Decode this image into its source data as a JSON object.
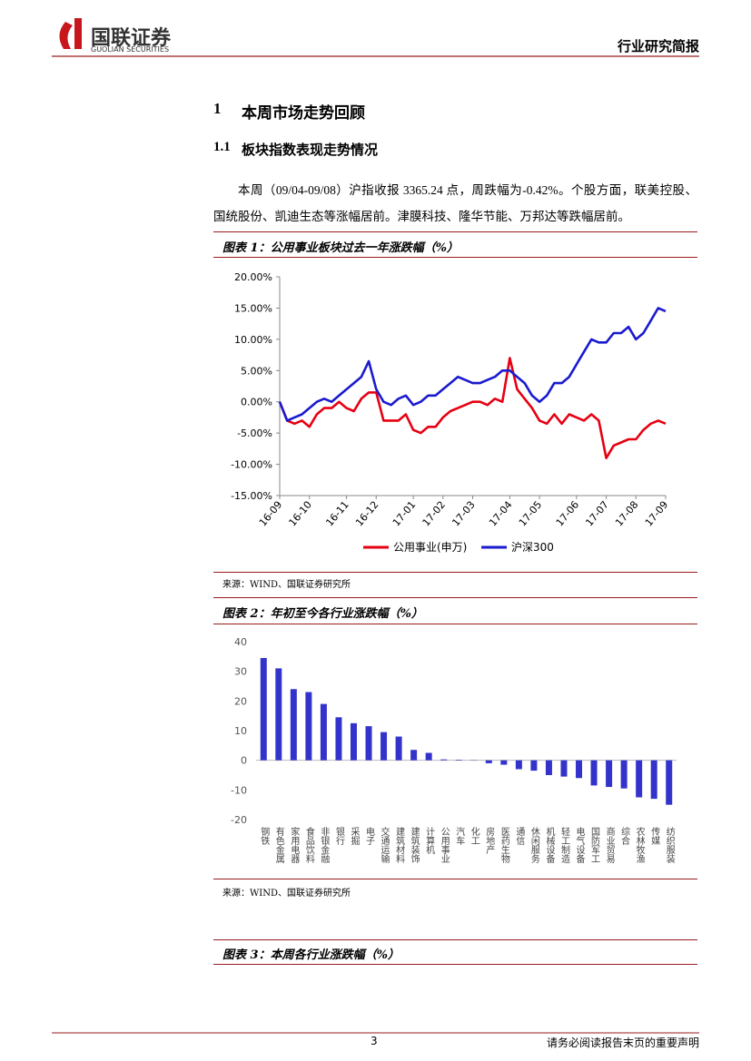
{
  "header": {
    "logo_cn": "国联证券",
    "logo_en": "GUOLIAN SECURITIES",
    "report_type": "行业研究简报"
  },
  "section": {
    "number": "1",
    "title": "本周市场走势回顾"
  },
  "subsection": {
    "number": "1.1",
    "title": "板块指数表现走势情况"
  },
  "paragraph": "本周（09/04-09/08）沪指收报 3365.24 点，周跌幅为-0.42%。个股方面，联美控股、国统股份、凯迪生态等涨幅居前。津膜科技、隆华节能、万邦达等跌幅居前。",
  "chart_data": [
    {
      "type": "line",
      "title": "图表 1：公用事业板块过去一年涨跌幅（%）",
      "source": "来源：WIND、国联证券研究所",
      "categories": [
        "16-09",
        null,
        null,
        null,
        "16-10",
        null,
        null,
        null,
        null,
        "16-11",
        null,
        null,
        null,
        "16-12",
        null,
        null,
        null,
        null,
        "17-01",
        null,
        null,
        null,
        "17-02",
        null,
        null,
        null,
        "17-03",
        null,
        null,
        null,
        null,
        "17-04",
        null,
        null,
        null,
        "17-05",
        null,
        null,
        null,
        null,
        "17-06",
        null,
        null,
        null,
        "17-07",
        null,
        null,
        null,
        "17-08",
        null,
        null,
        null,
        "17-09"
      ],
      "series": [
        {
          "name": "公用事业(申万)",
          "color": "#e60012",
          "values": [
            0,
            -3,
            -3.5,
            -3,
            -4,
            -2,
            -1,
            -1,
            0,
            -1,
            -1.5,
            0.5,
            1.5,
            1.5,
            -3,
            -3,
            -3,
            -2,
            -4.5,
            -5,
            -4,
            -4,
            -2.5,
            -1.5,
            -1,
            -0.5,
            0,
            0,
            -0.5,
            0.5,
            0,
            7,
            2,
            0.5,
            -1,
            -3,
            -3.5,
            -2,
            -3.5,
            -2,
            -2.5,
            -3,
            -2,
            -3,
            -9,
            -7,
            -6.5,
            -6,
            -6,
            -4.5,
            -3.5,
            -3,
            -3.5
          ]
        },
        {
          "name": "沪深300",
          "color": "#1a1ad0",
          "values": [
            0,
            -3,
            -2.5,
            -2,
            -1,
            0,
            0.5,
            0,
            1,
            2,
            3,
            4,
            6.5,
            2,
            0,
            -0.5,
            0.5,
            1,
            -0.5,
            0,
            1,
            1,
            2,
            3,
            4,
            3.5,
            3,
            3,
            3.5,
            4,
            5,
            5,
            4,
            3,
            1,
            0,
            1,
            3,
            3,
            4,
            6,
            8,
            10,
            9.5,
            9.5,
            11,
            11,
            12,
            10,
            11,
            13,
            15,
            14.5
          ]
        }
      ],
      "ylim": [
        -15,
        20
      ],
      "yticks": [
        {
          "value": -15,
          "label": "-15.00%"
        },
        {
          "value": -10,
          "label": "-10.00%"
        },
        {
          "value": -5,
          "label": "-5.00%"
        },
        {
          "value": 0,
          "label": "0.00%"
        },
        {
          "value": 5,
          "label": "5.00%"
        },
        {
          "value": 10,
          "label": "10.00%"
        },
        {
          "value": 15,
          "label": "15.00%"
        },
        {
          "value": 20,
          "label": "20.00%"
        }
      ],
      "grid": false,
      "legend": "bottom"
    },
    {
      "type": "bar",
      "title": "图表 2：年初至今各行业涨跌幅（%）",
      "source": "来源：WIND、国联证券研究所",
      "categories": [
        "钢铁",
        "有色金属",
        "家用电器",
        "食品饮料",
        "非银金融",
        "银行",
        "采掘",
        "电子",
        "交通运输",
        "建筑材料",
        "建筑装饰",
        "计算机",
        "公用事业",
        "汽车",
        "化工",
        "房地产",
        "医药生物",
        "通信",
        "休闲服务",
        "机械设备",
        "轻工制造",
        "电气设备",
        "国防军工",
        "商业贸易",
        "综合",
        "农林牧渔",
        "传媒",
        "纺织服装"
      ],
      "values": [
        34.5,
        31,
        24,
        23,
        19,
        14.5,
        12.5,
        11.5,
        9.5,
        8,
        3.5,
        2.5,
        0.3,
        0.2,
        0.1,
        -1,
        -1.5,
        -3,
        -3.5,
        -5,
        -5.5,
        -6,
        -8.5,
        -9,
        -9.5,
        -12.5,
        -13,
        -15
      ],
      "color": "#3333cc",
      "ylim": [
        -20,
        40
      ],
      "yticks": [
        -20,
        -10,
        0,
        10,
        20,
        30,
        40
      ],
      "grid": false
    }
  ],
  "figure3": {
    "title": "图表 3：本周各行业涨跌幅（%）"
  },
  "footer": {
    "page": "3",
    "disclaimer": "请务必阅读报告末页的重要声明"
  }
}
